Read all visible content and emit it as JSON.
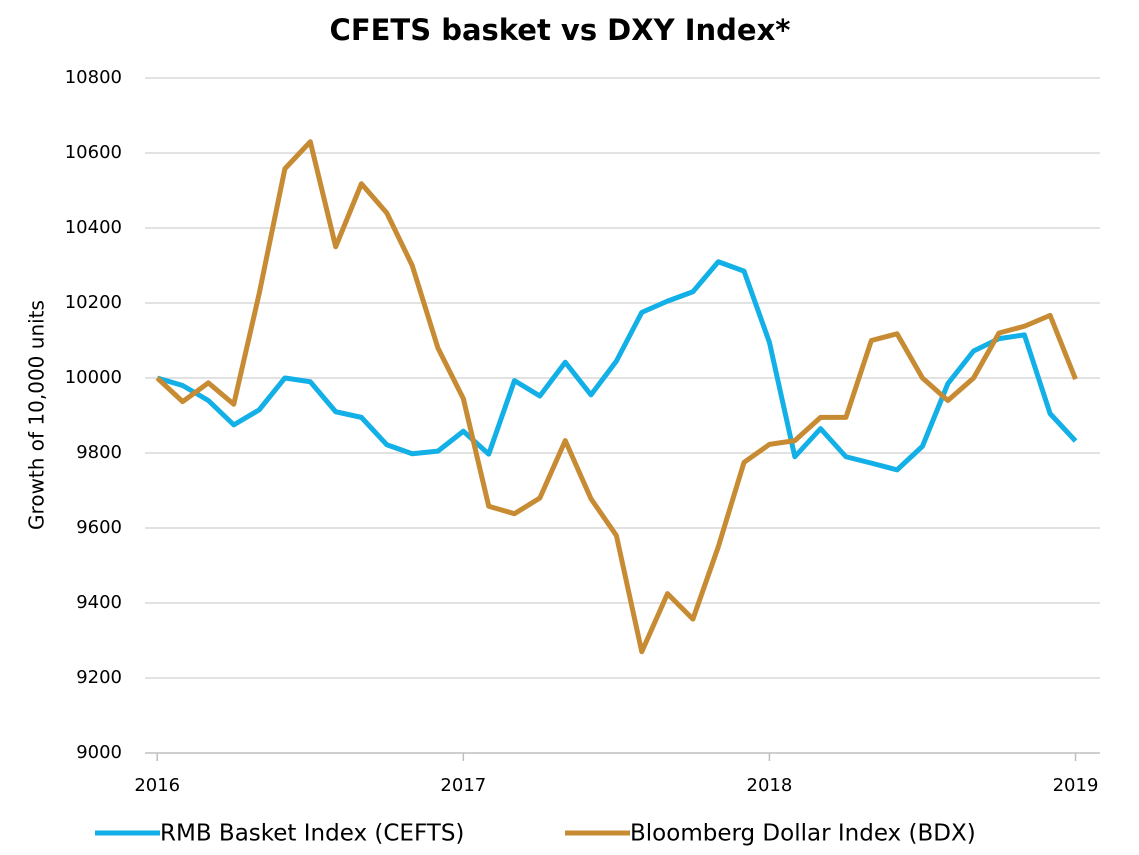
{
  "chart_data": {
    "type": "line",
    "title": "CFETS basket vs DXY Index*",
    "ylabel": "Growth of 10,000 units",
    "x": [
      2016,
      2016.083,
      2016.167,
      2016.25,
      2016.333,
      2016.417,
      2016.5,
      2016.583,
      2016.667,
      2016.75,
      2016.833,
      2016.917,
      2017,
      2017.083,
      2017.167,
      2017.25,
      2017.333,
      2017.417,
      2017.5,
      2017.583,
      2017.667,
      2017.75,
      2017.833,
      2017.917,
      2018,
      2018.083,
      2018.167,
      2018.25,
      2018.333,
      2018.417,
      2018.5,
      2018.583,
      2018.667,
      2018.75,
      2018.833,
      2018.917,
      2019
    ],
    "series": [
      {
        "name": "RMB Basket Index (CEFTS)",
        "color": "#12b0e6",
        "values": [
          10000,
          9980,
          9940,
          9875,
          9915,
          10000,
          9990,
          9910,
          9895,
          9822,
          9798,
          9805,
          9858,
          9797,
          9993,
          9952,
          10042,
          9955,
          10045,
          10175,
          10205,
          10230,
          10310,
          10285,
          10095,
          9790,
          9865,
          9790,
          9773,
          9755,
          9818,
          9985,
          10072,
          10105,
          10115,
          9905,
          9832
        ]
      },
      {
        "name": "Bloomberg Dollar Index (BDX)",
        "color": "#c68b33",
        "values": [
          10000,
          9937,
          9987,
          9930,
          10225,
          10558,
          10630,
          10350,
          10518,
          10440,
          10300,
          10080,
          9945,
          9658,
          9638,
          9680,
          9833,
          9678,
          9580,
          9270,
          9425,
          9357,
          9550,
          9775,
          9823,
          9833,
          9895,
          9895,
          10100,
          10118,
          10000,
          9940,
          10000,
          10120,
          10138,
          10167,
          9997
        ]
      }
    ],
    "xlim": [
      2015.96,
      2019.08
    ],
    "xticks": [
      2016,
      2017,
      2018,
      2019
    ],
    "ylim": [
      9000,
      10800
    ],
    "yticks": [
      9000,
      9200,
      9400,
      9600,
      9800,
      10000,
      10200,
      10400,
      10600,
      10800
    ],
    "grid": true,
    "legend": "bottom"
  }
}
